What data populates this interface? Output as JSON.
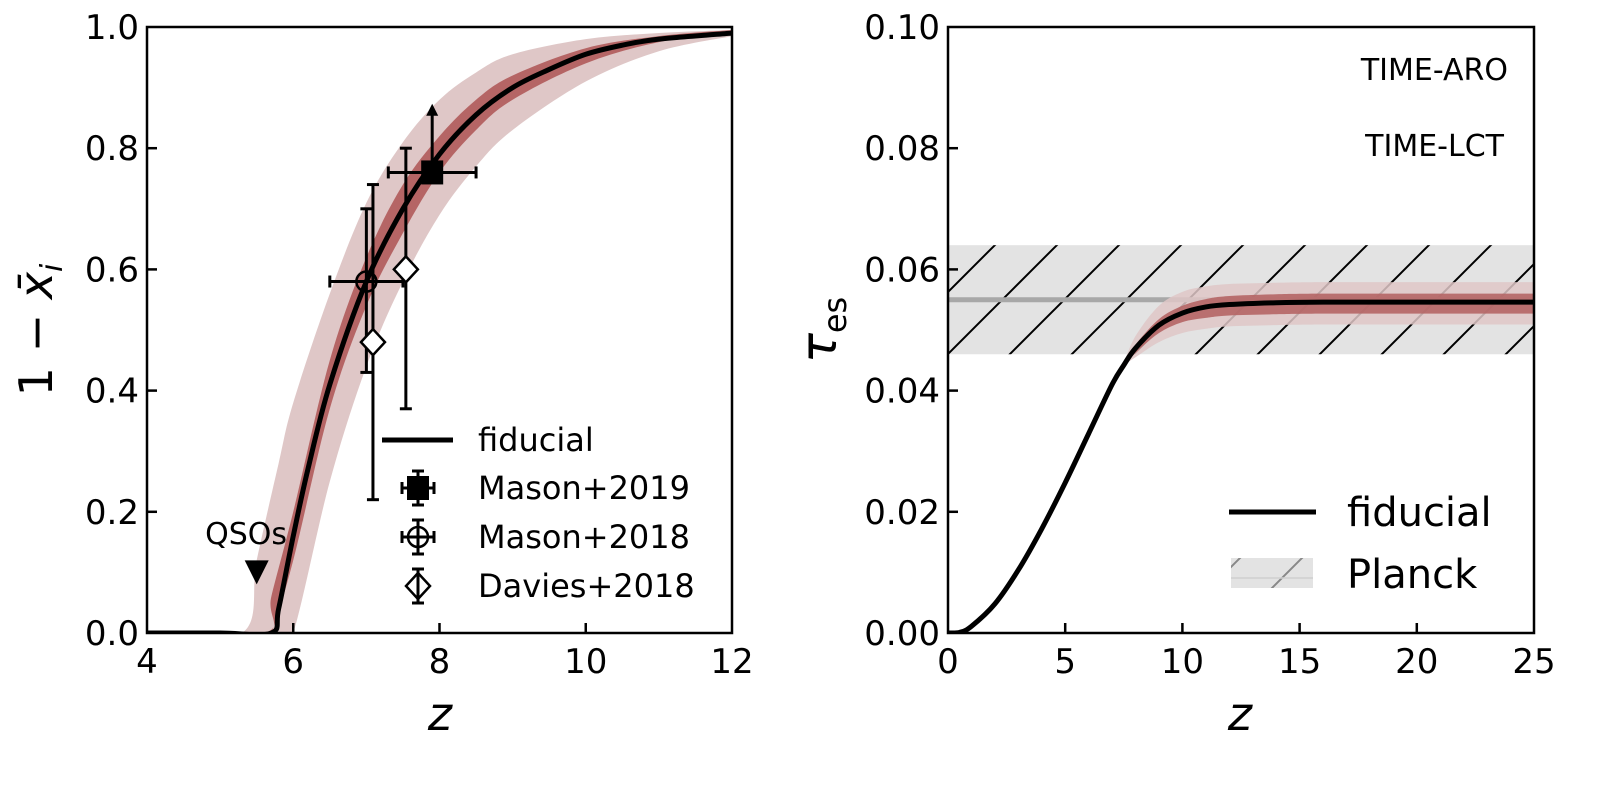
{
  "chart_data": [
    {
      "type": "line",
      "panel": "left",
      "title": "",
      "xlabel": "z",
      "ylabel": "1 − x̄_i",
      "xlim": [
        4,
        12
      ],
      "ylim": [
        0.0,
        1.0
      ],
      "xticks": [
        4,
        6,
        8,
        10,
        12
      ],
      "xtick_labels": [
        "4",
        "6",
        "8",
        "10",
        "12"
      ],
      "yticks": [
        0.0,
        0.2,
        0.4,
        0.6,
        0.8,
        1.0
      ],
      "ytick_labels": [
        "0.0",
        "0.2",
        "0.4",
        "0.6",
        "0.8",
        "1.0"
      ],
      "grid": false,
      "colors": {
        "fiducial": "#000000",
        "band_outer": "#dfc7c7",
        "band_inner": "#b56565"
      },
      "series": [
        {
          "name": "fiducial",
          "x": [
            4.0,
            5.0,
            5.7,
            5.8,
            6.0,
            6.2,
            6.5,
            7.0,
            7.5,
            8.0,
            8.5,
            9.0,
            9.5,
            10.0,
            10.5,
            11.0,
            12.0
          ],
          "y": [
            0.0,
            0.0,
            0.0,
            0.04,
            0.16,
            0.27,
            0.41,
            0.58,
            0.7,
            0.79,
            0.855,
            0.9,
            0.93,
            0.955,
            0.97,
            0.98,
            0.99
          ]
        },
        {
          "name": "TIME-ARO band (outer)",
          "x": [
            4.0,
            5.3,
            5.5,
            5.8,
            6.0,
            6.5,
            7.0,
            7.5,
            8.0,
            8.5,
            9.0,
            10.0,
            11.0,
            12.0
          ],
          "y_low": [
            0.0,
            0.0,
            0.0,
            0.0,
            0.0,
            0.25,
            0.44,
            0.58,
            0.69,
            0.77,
            0.83,
            0.91,
            0.96,
            0.985
          ],
          "y_high": [
            0.0,
            0.0,
            0.12,
            0.28,
            0.38,
            0.56,
            0.71,
            0.81,
            0.88,
            0.925,
            0.955,
            0.98,
            0.99,
            0.995
          ]
        },
        {
          "name": "TIME-LCT band (inner)",
          "x": [
            4.0,
            5.6,
            5.7,
            6.0,
            6.5,
            7.0,
            7.5,
            8.0,
            8.5,
            9.0,
            10.0,
            11.0,
            12.0
          ],
          "y_low": [
            0.0,
            0.0,
            0.0,
            0.12,
            0.37,
            0.54,
            0.66,
            0.76,
            0.83,
            0.88,
            0.94,
            0.975,
            0.99
          ],
          "y_high": [
            0.0,
            0.0,
            0.06,
            0.2,
            0.45,
            0.62,
            0.74,
            0.82,
            0.88,
            0.92,
            0.965,
            0.985,
            0.995
          ]
        }
      ],
      "points": [
        {
          "name": "Mason+2019",
          "marker": "square-filled",
          "x": 7.9,
          "y": 0.76,
          "xerr": [
            0.6,
            0.6
          ],
          "yerr": [
            0.0,
            0.11
          ],
          "lower_limit": true
        },
        {
          "name": "Mason+2018",
          "marker": "circle-open",
          "x": 7.0,
          "y": 0.58,
          "xerr": [
            0.5,
            0.5
          ],
          "yerr": [
            0.15,
            0.12
          ]
        },
        {
          "name": "Davies+2018",
          "marker": "diamond-open",
          "x": 7.09,
          "y": 0.48,
          "xerr": [
            0,
            0
          ],
          "yerr": [
            0.26,
            0.26
          ]
        },
        {
          "name": "Davies+2018",
          "marker": "diamond-open",
          "x": 7.54,
          "y": 0.6,
          "xerr": [
            0,
            0
          ],
          "yerr": [
            0.23,
            0.2
          ]
        },
        {
          "name": "QSOs",
          "marker": "triangle-down-filled",
          "x": 5.5,
          "y": 0.1,
          "xerr": [
            0,
            0
          ],
          "yerr": [
            0,
            0
          ]
        }
      ],
      "annotations": [
        {
          "text": "QSOs",
          "x": 5.3,
          "y": 0.15
        }
      ],
      "legend": {
        "placement": "lower-right",
        "entries": [
          "fiducial",
          "Mason+2019",
          "Mason+2018",
          "Davies+2018"
        ]
      }
    },
    {
      "type": "line",
      "panel": "right",
      "title": "",
      "xlabel": "z",
      "ylabel": "τ_es",
      "xlim": [
        0,
        25
      ],
      "ylim": [
        0.0,
        0.1
      ],
      "xticks": [
        0,
        5,
        10,
        15,
        20,
        25
      ],
      "xtick_labels": [
        "0",
        "5",
        "10",
        "15",
        "20",
        "25"
      ],
      "yticks": [
        0.0,
        0.02,
        0.04,
        0.06,
        0.08,
        0.1
      ],
      "ytick_labels": [
        "0.00",
        "0.02",
        "0.04",
        "0.06",
        "0.08",
        "0.10"
      ],
      "grid": false,
      "colors": {
        "fiducial": "#000000",
        "band_outer": "#dfc7c7",
        "band_inner": "#b56565",
        "planck_fill": "#e3e3e3",
        "planck_line": "#a8a8a8",
        "time_aro_text": "#dfc7c7",
        "time_lct_text": "#c07a7a"
      },
      "series": [
        {
          "name": "fiducial",
          "x": [
            0,
            0.5,
            1,
            2,
            3,
            4,
            5,
            6,
            7,
            7.5,
            8,
            9,
            10,
            11,
            12,
            14,
            16,
            20,
            25
          ],
          "y": [
            0.0,
            0.0001,
            0.0011,
            0.0048,
            0.0104,
            0.0172,
            0.0248,
            0.0329,
            0.041,
            0.0442,
            0.047,
            0.0508,
            0.0528,
            0.0538,
            0.0542,
            0.0545,
            0.0546,
            0.0546,
            0.0546
          ]
        },
        {
          "name": "TIME-ARO band (outer)",
          "x": [
            7.5,
            8,
            9,
            10,
            11,
            12,
            14,
            16,
            20,
            25
          ],
          "y_low": [
            0.0442,
            0.0455,
            0.048,
            0.0495,
            0.0502,
            0.0506,
            0.0508,
            0.0509,
            0.0509,
            0.0509
          ],
          "y_high": [
            0.0445,
            0.049,
            0.054,
            0.0563,
            0.0572,
            0.0576,
            0.0578,
            0.0579,
            0.0579,
            0.0579
          ]
        },
        {
          "name": "TIME-LCT band (inner)",
          "x": [
            7.5,
            8,
            9,
            10,
            11,
            12,
            14,
            16,
            20,
            25
          ],
          "y_low": [
            0.044,
            0.0462,
            0.0495,
            0.0513,
            0.052,
            0.0524,
            0.0526,
            0.0527,
            0.0527,
            0.0527
          ],
          "y_high": [
            0.0446,
            0.0476,
            0.0518,
            0.054,
            0.0551,
            0.0556,
            0.0559,
            0.056,
            0.056,
            0.056
          ]
        }
      ],
      "planck": {
        "name": "Planck",
        "center": 0.055,
        "low": 0.046,
        "high": 0.064,
        "hatch": "/"
      },
      "annotations": [
        {
          "text": "TIME-ARO",
          "x": 22,
          "y": 0.093
        },
        {
          "text": "TIME-LCT",
          "x": 22,
          "y": 0.081
        }
      ],
      "legend": {
        "placement": "lower-right",
        "entries": [
          "fiducial",
          "Planck"
        ]
      }
    }
  ]
}
